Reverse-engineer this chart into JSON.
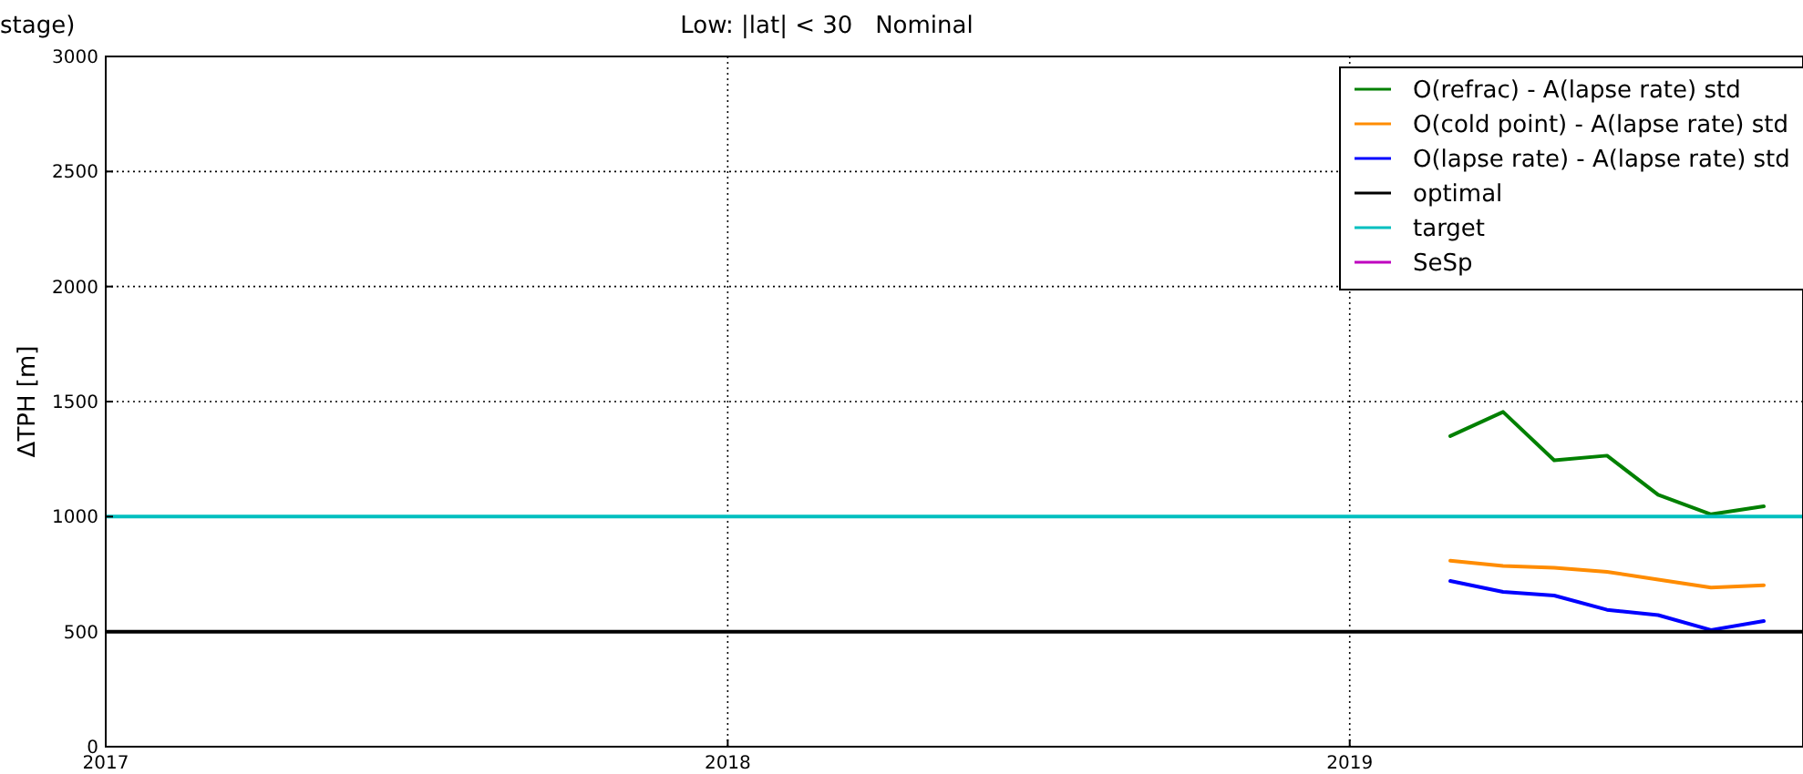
{
  "chart_data": {
    "type": "line",
    "title": "stage)",
    "subtitle": "Low: |lat| < 30   Nominal",
    "ylabel": "ΔTPH  [m]",
    "x": [
      "2019-03-01",
      "2019-04-01",
      "2019-05-01",
      "2019-06-01",
      "2019-07-01",
      "2019-08-01",
      "2019-09-01"
    ],
    "series": [
      {
        "name": "O(refrac) - A(lapse rate) std",
        "color": "#008000",
        "values": [
          1350,
          1455,
          1245,
          1265,
          1095,
          1010,
          1045
        ]
      },
      {
        "name": "O(cold point) - A(lapse rate) std",
        "color": "#ff8c00",
        "values": [
          808,
          786,
          778,
          760,
          726,
          692,
          702
        ]
      },
      {
        "name": "O(lapse rate) - A(lapse rate) std",
        "color": "#0000ff",
        "values": [
          720,
          673,
          657,
          595,
          572,
          507,
          546
        ]
      },
      {
        "name": "optimal",
        "color": "#000000",
        "x": [
          "2017-01-01",
          "2019-09-24"
        ],
        "values": [
          500,
          500
        ]
      },
      {
        "name": "target",
        "color": "#00bfbf",
        "x": [
          "2017-01-01",
          "2019-09-24"
        ],
        "values": [
          1000,
          1000
        ]
      },
      {
        "name": "SeSp",
        "color": "#bf00bf",
        "values": [
          null,
          null,
          null,
          null,
          null,
          null,
          null
        ]
      }
    ],
    "xlim": [
      "2017-01-01",
      "2019-09-24"
    ],
    "xticks": [
      "2017",
      "2018",
      "2019"
    ],
    "ylim": [
      0,
      3000
    ],
    "yticks": [
      0,
      500,
      1000,
      1500,
      2000,
      2500,
      3000
    ],
    "grid": true,
    "legend": "top right",
    "line_style": "solid",
    "marker": "none"
  }
}
